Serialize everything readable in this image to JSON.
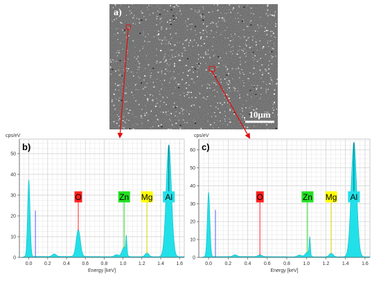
{
  "sem": {
    "panel_label": "a)",
    "scale_bar_label": "10μm"
  },
  "chart_data": [
    {
      "type": "line",
      "panel_label": "b)",
      "ylabel": "cps/eV",
      "xlabel": "Energy [keV]",
      "xlim": [
        -0.1,
        1.65
      ],
      "ylim": [
        0,
        57
      ],
      "x_ticks": [
        0.0,
        0.2,
        0.4,
        0.6,
        0.8,
        1.0,
        1.2,
        1.4,
        1.6
      ],
      "y_ticks": [
        0,
        10,
        20,
        30,
        40,
        50
      ],
      "grid": true,
      "fill_color": "#22e0e8",
      "marker_line": {
        "x": 0.07,
        "y": 22.5
      },
      "peaks": [
        {
          "x": 0.0,
          "y": 37,
          "w": 0.013
        },
        {
          "x": 0.27,
          "y": 1.2,
          "w": 0.02
        },
        {
          "x": 0.525,
          "y": 13,
          "w": 0.022
        },
        {
          "x": 0.93,
          "y": 1.0,
          "w": 0.02
        },
        {
          "x": 1.01,
          "y": 4.5,
          "w": 0.022
        },
        {
          "x": 1.035,
          "y": 8.0,
          "w": 0.006
        },
        {
          "x": 1.254,
          "y": 1.8,
          "w": 0.02
        },
        {
          "x": 1.486,
          "y": 54,
          "w": 0.028
        }
      ],
      "elements": [
        {
          "label": "O",
          "x": 0.525,
          "y": 13,
          "color": "#ff2020",
          "text_color": "#000000"
        },
        {
          "label": "Zn",
          "x": 1.012,
          "y": 4.5,
          "color": "#22e022",
          "text_color": "#000000"
        },
        {
          "label": "Mg",
          "x": 1.254,
          "y": 1.8,
          "color": "#ffff00",
          "text_color": "#000000"
        },
        {
          "label": "Al",
          "x": 1.486,
          "y": 54,
          "color": "#22e0e8",
          "text_color": "#000000"
        }
      ]
    },
    {
      "type": "line",
      "panel_label": "c)",
      "ylabel": "cps/eV",
      "xlabel": "Energy [keV]",
      "xlim": [
        -0.1,
        1.65
      ],
      "ylim": [
        0,
        66
      ],
      "x_ticks": [
        0.0,
        0.2,
        0.4,
        0.6,
        0.8,
        1.0,
        1.2,
        1.4,
        1.6
      ],
      "y_ticks": [
        0,
        10,
        20,
        30,
        40,
        50,
        60
      ],
      "grid": true,
      "fill_color": "#22e0e8",
      "marker_line": {
        "x": 0.07,
        "y": 26.5
      },
      "peaks": [
        {
          "x": 0.0,
          "y": 36,
          "w": 0.013
        },
        {
          "x": 0.27,
          "y": 1.0,
          "w": 0.02
        },
        {
          "x": 0.525,
          "y": 1.0,
          "w": 0.02
        },
        {
          "x": 0.93,
          "y": 1.0,
          "w": 0.02
        },
        {
          "x": 1.01,
          "y": 2.5,
          "w": 0.022
        },
        {
          "x": 1.035,
          "y": 10.0,
          "w": 0.006
        },
        {
          "x": 1.254,
          "y": 2.0,
          "w": 0.02
        },
        {
          "x": 1.486,
          "y": 64,
          "w": 0.028
        }
      ],
      "elements": [
        {
          "label": "O",
          "x": 0.525,
          "y": 1.0,
          "color": "#ff2020",
          "text_color": "#000000"
        },
        {
          "label": "Zn",
          "x": 1.012,
          "y": 2.5,
          "color": "#22e022",
          "text_color": "#000000"
        },
        {
          "label": "Mg",
          "x": 1.254,
          "y": 2.0,
          "color": "#ffff00",
          "text_color": "#000000"
        },
        {
          "label": "Al",
          "x": 1.486,
          "y": 64,
          "color": "#22e0e8",
          "text_color": "#000000"
        }
      ]
    }
  ]
}
